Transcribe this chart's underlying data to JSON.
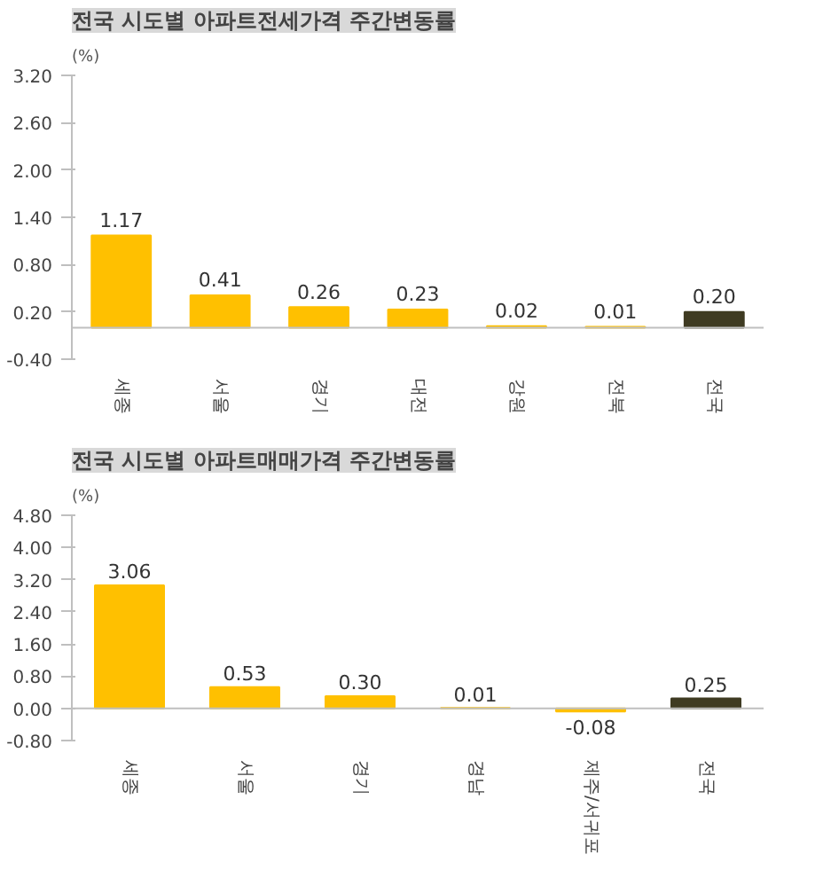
{
  "chart_data": [
    {
      "type": "bar",
      "title": "전국 시도별 아파트전세가격 주간변동률",
      "ylabel": "(%)",
      "categories": [
        "세종",
        "서울",
        "경기",
        "대전",
        "강원",
        "전북",
        "전국"
      ],
      "values": [
        1.17,
        0.41,
        0.26,
        0.23,
        0.02,
        0.01,
        0.2
      ],
      "value_labels": [
        "1.17",
        "0.41",
        "0.26",
        "0.23",
        "0.02",
        "0.01",
        "0.20"
      ],
      "colors": [
        "#ffc000",
        "#ffc000",
        "#ffc000",
        "#ffc000",
        "#ffc000",
        "#ffc000",
        "#3f3b22"
      ],
      "ylim": [
        -0.4,
        3.2
      ],
      "yticks": [
        {
          "value": -0.4,
          "label": "-0.40"
        },
        {
          "value": 0.2,
          "label": "0.20"
        },
        {
          "value": 0.8,
          "label": "0.80"
        },
        {
          "value": 1.4,
          "label": "1.40"
        },
        {
          "value": 2.0,
          "label": "2.00"
        },
        {
          "value": 2.6,
          "label": "2.60"
        },
        {
          "value": 3.2,
          "label": "3.20"
        }
      ],
      "ref_lines": [
        {
          "axis": "y",
          "value": 0,
          "color": "#bfbfbf"
        }
      ]
    },
    {
      "type": "bar",
      "title": "전국 시도별 아파트매매가격 주간변동률",
      "ylabel": "(%)",
      "categories": [
        "세종",
        "서울",
        "경기",
        "경남",
        "제주/서귀포",
        "전국"
      ],
      "values": [
        3.06,
        0.53,
        0.3,
        0.01,
        -0.08,
        0.25
      ],
      "value_labels": [
        "3.06",
        "0.53",
        "0.30",
        "0.01",
        "-0.08",
        "0.25"
      ],
      "colors": [
        "#ffc000",
        "#ffc000",
        "#ffc000",
        "#ffc000",
        "#ffc000",
        "#3f3b22"
      ],
      "ylim": [
        -0.8,
        4.8
      ],
      "yticks": [
        {
          "value": -0.8,
          "label": "-0.80"
        },
        {
          "value": 0.0,
          "label": "0.00"
        },
        {
          "value": 0.8,
          "label": "0.80"
        },
        {
          "value": 1.6,
          "label": "1.60"
        },
        {
          "value": 2.4,
          "label": "2.40"
        },
        {
          "value": 3.2,
          "label": "3.20"
        },
        {
          "value": 4.0,
          "label": "4.00"
        },
        {
          "value": 4.8,
          "label": "4.80"
        }
      ],
      "ref_lines": [
        {
          "axis": "y",
          "value": 0,
          "color": "#bfbfbf"
        }
      ]
    }
  ]
}
